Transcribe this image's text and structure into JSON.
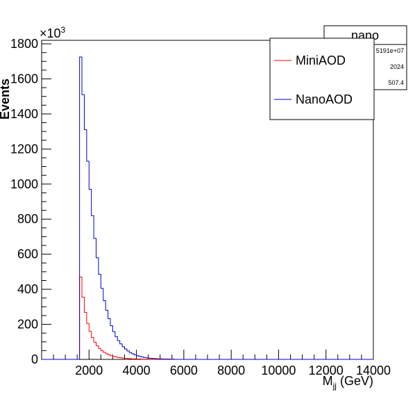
{
  "chart_data": {
    "type": "histogram",
    "xlabel_main": "M",
    "xlabel_sub": "jj",
    "xlabel_unit": " (GeV)",
    "ylabel": "Events",
    "y_multiplier_base": "×10",
    "y_multiplier_exp": "3",
    "xlim": [
      0,
      14000
    ],
    "ylim": [
      0,
      1820
    ],
    "x_ticks": [
      2000,
      4000,
      6000,
      8000,
      10000,
      12000,
      14000
    ],
    "y_ticks": [
      0,
      200,
      400,
      600,
      800,
      1000,
      1200,
      1400,
      1600,
      1800
    ],
    "bin_width": 100,
    "stats_box": {
      "title": "nano",
      "values": [
        "5191e+07",
        "2024",
        "507.4"
      ]
    },
    "legend": {
      "placement": "top-right",
      "entries": [
        "MiniAOD",
        "NanoAOD"
      ]
    },
    "colors": {
      "MiniAOD": "#ff0000",
      "NanoAOD": "#0000cc"
    },
    "series": [
      {
        "name": "MiniAOD",
        "bin_start": 1600,
        "values": [
          470,
          355,
          268,
          205,
          160,
          125,
          98,
          78,
          62,
          50,
          40,
          32,
          26,
          21,
          17,
          14,
          11,
          9,
          7,
          6,
          5,
          4,
          3,
          3,
          2,
          2,
          1,
          1,
          1,
          1,
          1,
          1,
          0.5,
          0.5,
          0.5,
          0.5,
          0.5,
          0.5,
          0.5,
          0.5
        ]
      },
      {
        "name": "NanoAOD",
        "bin_start": 1600,
        "values": [
          1725,
          1510,
          1310,
          1130,
          970,
          820,
          690,
          580,
          485,
          405,
          335,
          280,
          232,
          192,
          158,
          130,
          107,
          88,
          72,
          59,
          48,
          39,
          32,
          26,
          21,
          17,
          14,
          11,
          9,
          7,
          6,
          5,
          4,
          3,
          3,
          2,
          2,
          2,
          1,
          1
        ]
      }
    ]
  }
}
